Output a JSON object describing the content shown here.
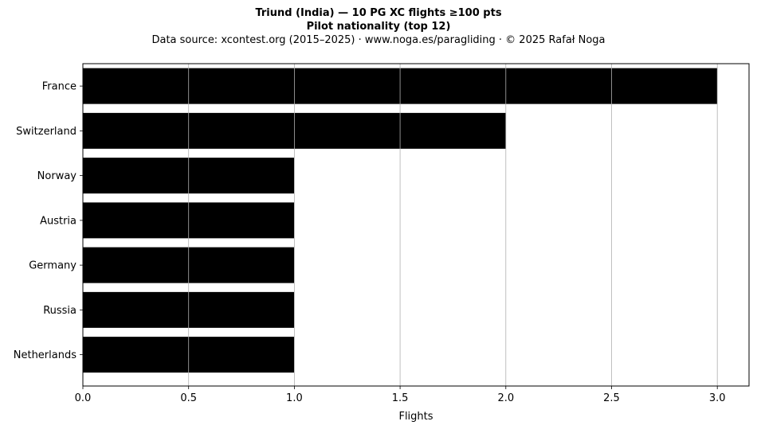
{
  "chart_data": {
    "type": "bar",
    "orientation": "horizontal",
    "title_lines": [
      "Triund (India)  —  10 PG XC flights ≥100 pts",
      "Pilot nationality (top 12)"
    ],
    "subtitle": "Data source: xcontest.org (2015–2025)  ·  www.noga.es/paragliding  ·  © 2025 Rafał Noga",
    "categories": [
      "France",
      "Switzerland",
      "Norway",
      "Austria",
      "Germany",
      "Russia",
      "Netherlands"
    ],
    "values": [
      3,
      2,
      1,
      1,
      1,
      1,
      1
    ],
    "xlabel": "Flights",
    "ylabel": "",
    "xlim": [
      0,
      3.15
    ],
    "xticks": [
      0.0,
      0.5,
      1.0,
      1.5,
      2.0,
      2.5,
      3.0
    ],
    "xtick_labels": [
      "0.0",
      "0.5",
      "1.0",
      "1.5",
      "2.0",
      "2.5",
      "3.0"
    ],
    "grid": "vertical",
    "legend": "none",
    "bar_color": "#000000",
    "grid_color": "#b0b0b0"
  }
}
